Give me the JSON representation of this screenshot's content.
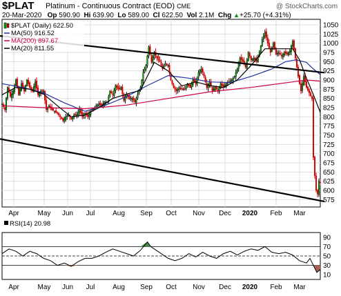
{
  "header": {
    "symbol": "$PLAT",
    "name": "Platinum - Continuous Contract (EOD)",
    "exchange": "CME",
    "copyright": "@ StockCharts.com",
    "date": "20-Mar-2020",
    "open_label": "Op",
    "open": "590.90",
    "high_label": "Hi",
    "high": "639.90",
    "low_label": "Lo",
    "low": "589.00",
    "close_label": "Cl",
    "close": "622.50",
    "volume_label": "Vol",
    "volume": "2.1M",
    "change_label": "Chg",
    "change": "+25.70 (+4.31%)",
    "change_icon": "triangle-up-icon"
  },
  "legend": [
    {
      "label": "$PLAT (Daily) 622.50",
      "color": "#000000",
      "icon": "candlestick-icon"
    },
    {
      "label": "MA(50) 916.52",
      "color": "#1f2fa0"
    },
    {
      "label": "MA(200) 897.67",
      "color": "#cc0044"
    },
    {
      "label": "MA(20) 811.55",
      "color": "#000000"
    }
  ],
  "rsi_legend": {
    "label": "RSI(14) 20.98",
    "icon": "rsi-swatch-icon"
  },
  "chart_data": [
    {
      "type": "candlestick",
      "title": "$PLAT (Daily) 622.50",
      "ylim": [
        555,
        1065
      ],
      "yticks": [
        575,
        600,
        625,
        650,
        675,
        700,
        725,
        750,
        775,
        800,
        825,
        850,
        875,
        900,
        925,
        950,
        975,
        1000,
        1025,
        1050
      ],
      "xticks": [
        "Apr",
        "May",
        "Jun",
        "Jul",
        "Aug",
        "Sep",
        "Oct",
        "Nov",
        "Dec",
        "2020",
        "Feb",
        "Mar"
      ],
      "grid": true,
      "series": [
        {
          "name": "MA(50) 916.52",
          "color": "#1f2fa0"
        },
        {
          "name": "MA(200) 897.67",
          "color": "#cc0044"
        },
        {
          "name": "MA(20) 811.55",
          "color": "#000000"
        }
      ],
      "price_path": [
        [
          0,
          835
        ],
        [
          4,
          820
        ],
        [
          8,
          880
        ],
        [
          12,
          855
        ],
        [
          16,
          870
        ],
        [
          20,
          900
        ],
        [
          24,
          860
        ],
        [
          28,
          890
        ],
        [
          32,
          870
        ],
        [
          36,
          900
        ],
        [
          40,
          880
        ],
        [
          44,
          870
        ],
        [
          48,
          895
        ],
        [
          52,
          860
        ],
        [
          56,
          870
        ],
        [
          60,
          870
        ],
        [
          64,
          820
        ],
        [
          68,
          830
        ],
        [
          72,
          820
        ],
        [
          76,
          815
        ],
        [
          80,
          810
        ],
        [
          84,
          800
        ],
        [
          88,
          790
        ],
        [
          92,
          800
        ],
        [
          96,
          805
        ],
        [
          100,
          795
        ],
        [
          104,
          805
        ],
        [
          108,
          805
        ],
        [
          112,
          820
        ],
        [
          116,
          800
        ],
        [
          120,
          810
        ],
        [
          124,
          800
        ],
        [
          128,
          815
        ],
        [
          132,
          820
        ],
        [
          136,
          830
        ],
        [
          140,
          835
        ],
        [
          144,
          830
        ],
        [
          148,
          840
        ],
        [
          152,
          840
        ],
        [
          156,
          870
        ],
        [
          160,
          860
        ],
        [
          164,
          885
        ],
        [
          168,
          875
        ],
        [
          172,
          880
        ],
        [
          176,
          845
        ],
        [
          180,
          860
        ],
        [
          184,
          850
        ],
        [
          188,
          850
        ],
        [
          192,
          840
        ],
        [
          196,
          860
        ],
        [
          200,
          880
        ],
        [
          204,
          920
        ],
        [
          208,
          940
        ],
        [
          212,
          990
        ],
        [
          216,
          950
        ],
        [
          220,
          975
        ],
        [
          224,
          960
        ],
        [
          228,
          950
        ],
        [
          232,
          930
        ],
        [
          236,
          945
        ],
        [
          240,
          940
        ],
        [
          244,
          900
        ],
        [
          248,
          880
        ],
        [
          252,
          870
        ],
        [
          256,
          880
        ],
        [
          260,
          875
        ],
        [
          264,
          875
        ],
        [
          268,
          890
        ],
        [
          272,
          880
        ],
        [
          276,
          900
        ],
        [
          280,
          890
        ],
        [
          284,
          920
        ],
        [
          288,
          930
        ],
        [
          292,
          910
        ],
        [
          296,
          880
        ],
        [
          300,
          895
        ],
        [
          304,
          870
        ],
        [
          308,
          880
        ],
        [
          312,
          870
        ],
        [
          316,
          890
        ],
        [
          320,
          880
        ],
        [
          324,
          890
        ],
        [
          328,
          895
        ],
        [
          332,
          900
        ],
        [
          336,
          910
        ],
        [
          340,
          930
        ],
        [
          344,
          960
        ],
        [
          348,
          950
        ],
        [
          352,
          935
        ],
        [
          356,
          975
        ],
        [
          360,
          955
        ],
        [
          364,
          960
        ],
        [
          368,
          950
        ],
        [
          372,
          975
        ],
        [
          376,
          1010
        ],
        [
          380,
          1030
        ],
        [
          384,
          1000
        ],
        [
          388,
          975
        ],
        [
          392,
          1000
        ],
        [
          396,
          970
        ],
        [
          400,
          975
        ],
        [
          404,
          965
        ],
        [
          408,
          975
        ],
        [
          412,
          970
        ],
        [
          416,
          980
        ],
        [
          420,
          1005
        ],
        [
          424,
          960
        ],
        [
          428,
          910
        ],
        [
          432,
          870
        ],
        [
          436,
          910
        ],
        [
          440,
          880
        ],
        [
          444,
          865
        ],
        [
          448,
          850
        ],
        [
          450,
          690
        ],
        [
          452,
          640
        ],
        [
          454,
          600
        ],
        [
          456,
          590
        ],
        [
          458,
          625
        ],
        [
          460,
          622
        ]
      ],
      "ma50_path": [
        [
          0,
          890
        ],
        [
          30,
          880
        ],
        [
          60,
          865
        ],
        [
          90,
          838
        ],
        [
          120,
          815
        ],
        [
          150,
          832
        ],
        [
          180,
          855
        ],
        [
          210,
          885
        ],
        [
          240,
          912
        ],
        [
          270,
          905
        ],
        [
          300,
          895
        ],
        [
          330,
          893
        ],
        [
          360,
          910
        ],
        [
          390,
          930
        ],
        [
          410,
          950
        ],
        [
          425,
          955
        ],
        [
          440,
          948
        ],
        [
          450,
          930
        ],
        [
          460,
          915
        ]
      ],
      "ma200_path": [
        [
          0,
          830
        ],
        [
          60,
          825
        ],
        [
          120,
          822
        ],
        [
          180,
          832
        ],
        [
          240,
          850
        ],
        [
          300,
          868
        ],
        [
          360,
          880
        ],
        [
          420,
          895
        ],
        [
          440,
          900
        ],
        [
          460,
          897
        ]
      ],
      "ma20_path": [
        [
          0,
          860
        ],
        [
          20,
          880
        ],
        [
          40,
          875
        ],
        [
          60,
          862
        ],
        [
          80,
          830
        ],
        [
          100,
          800
        ],
        [
          120,
          805
        ],
        [
          140,
          825
        ],
        [
          160,
          850
        ],
        [
          180,
          862
        ],
        [
          200,
          872
        ],
        [
          220,
          948
        ],
        [
          240,
          925
        ],
        [
          260,
          884
        ],
        [
          280,
          895
        ],
        [
          300,
          885
        ],
        [
          320,
          880
        ],
        [
          340,
          900
        ],
        [
          360,
          940
        ],
        [
          380,
          985
        ],
        [
          400,
          985
        ],
        [
          420,
          985
        ],
        [
          430,
          955
        ],
        [
          440,
          905
        ],
        [
          450,
          860
        ],
        [
          460,
          812
        ]
      ],
      "trendline_upper": [
        [
          0,
          1020
        ],
        [
          460,
          920
        ]
      ],
      "trendline_lower": [
        [
          0,
          740
        ],
        [
          460,
          570
        ]
      ]
    },
    {
      "type": "line",
      "title": "RSI(14) 20.98",
      "ylim": [
        0,
        100
      ],
      "yticks": [
        10,
        30,
        50,
        70,
        90
      ],
      "reference_lines": [
        30,
        50,
        70
      ],
      "xticks": [
        "Apr",
        "May",
        "Jun",
        "Jul",
        "Aug",
        "Sep",
        "Oct",
        "Nov",
        "Dec",
        "2020",
        "Feb",
        "Mar"
      ],
      "grid": true,
      "rsi_path": [
        [
          0,
          55
        ],
        [
          10,
          65
        ],
        [
          20,
          60
        ],
        [
          30,
          50
        ],
        [
          40,
          60
        ],
        [
          50,
          55
        ],
        [
          60,
          45
        ],
        [
          70,
          40
        ],
        [
          80,
          30
        ],
        [
          90,
          35
        ],
        [
          100,
          28
        ],
        [
          110,
          38
        ],
        [
          120,
          45
        ],
        [
          130,
          45
        ],
        [
          140,
          50
        ],
        [
          150,
          58
        ],
        [
          160,
          65
        ],
        [
          170,
          60
        ],
        [
          180,
          55
        ],
        [
          190,
          50
        ],
        [
          200,
          62
        ],
        [
          210,
          80
        ],
        [
          215,
          70
        ],
        [
          220,
          65
        ],
        [
          230,
          55
        ],
        [
          240,
          45
        ],
        [
          250,
          40
        ],
        [
          260,
          45
        ],
        [
          270,
          55
        ],
        [
          280,
          48
        ],
        [
          290,
          58
        ],
        [
          300,
          50
        ],
        [
          310,
          45
        ],
        [
          320,
          55
        ],
        [
          330,
          60
        ],
        [
          340,
          52
        ],
        [
          350,
          60
        ],
        [
          360,
          65
        ],
        [
          370,
          62
        ],
        [
          380,
          70
        ],
        [
          390,
          58
        ],
        [
          400,
          55
        ],
        [
          410,
          58
        ],
        [
          420,
          52
        ],
        [
          430,
          40
        ],
        [
          440,
          35
        ],
        [
          445,
          45
        ],
        [
          450,
          30
        ],
        [
          455,
          15
        ],
        [
          460,
          21
        ]
      ]
    }
  ]
}
